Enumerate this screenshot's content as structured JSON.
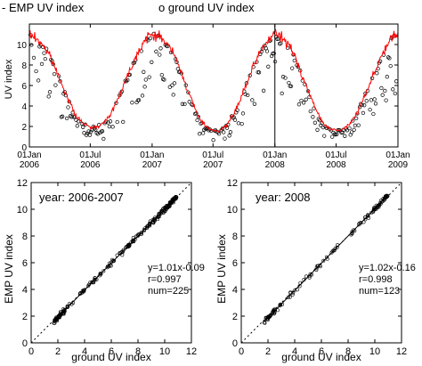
{
  "chart_data": [
    {
      "type": "line",
      "legend": {
        "emp_label": "- EMP UV index",
        "ground_label": "o ground UV index",
        "emp_color": "#ff0000",
        "ground_color": "#000000",
        "placement": "top"
      },
      "ylabel": "UV index",
      "xlabel": "",
      "ylim": [
        0,
        12
      ],
      "yticks": [
        0,
        2,
        4,
        6,
        8,
        10
      ],
      "xlim": [
        "2006-01-01",
        "2009-01-01"
      ],
      "xticks": [
        {
          "date": "2006-01-01",
          "label": [
            "01Jan",
            "2006"
          ]
        },
        {
          "date": "2006-07-01",
          "label": [
            "01Jul",
            "2006"
          ]
        },
        {
          "date": "2007-01-01",
          "label": [
            "01Jan",
            "2007"
          ]
        },
        {
          "date": "2007-07-01",
          "label": [
            "01Jul",
            "2007"
          ]
        },
        {
          "date": "2008-01-01",
          "label": [
            "01Jan",
            "2008"
          ]
        },
        {
          "date": "2008-07-01",
          "label": [
            "01Jul",
            "2008"
          ]
        },
        {
          "date": "2009-01-01",
          "label": [
            "01Jan",
            "2009"
          ]
        }
      ],
      "vline": "2008-01-01",
      "series": [
        {
          "kind": "line",
          "color": "#ff0000",
          "x": [
            "2006-01-01",
            "2006-01-20",
            "2006-02-10",
            "2006-03-01",
            "2006-03-20",
            "2006-04-10",
            "2006-05-01",
            "2006-05-20",
            "2006-06-10",
            "2006-07-01",
            "2006-07-20",
            "2006-08-10",
            "2006-09-01",
            "2006-09-20",
            "2006-10-10",
            "2006-11-01",
            "2006-11-20",
            "2006-12-10",
            "2007-01-01",
            "2007-01-20",
            "2007-02-10",
            "2007-03-01",
            "2007-03-20",
            "2007-04-10",
            "2007-05-01",
            "2007-05-20",
            "2007-06-10",
            "2007-07-01",
            "2007-07-20",
            "2007-08-10",
            "2007-09-01",
            "2007-09-20",
            "2007-10-10",
            "2007-11-01",
            "2007-11-20",
            "2007-12-10",
            "2008-01-01",
            "2008-01-20",
            "2008-02-10",
            "2008-03-01",
            "2008-03-20",
            "2008-04-10",
            "2008-05-01",
            "2008-05-20",
            "2008-06-10",
            "2008-07-01",
            "2008-07-20",
            "2008-08-10",
            "2008-09-01",
            "2008-09-20",
            "2008-10-10",
            "2008-11-01",
            "2008-11-20",
            "2008-12-10",
            "2009-01-01"
          ],
          "y": [
            11.0,
            10.6,
            10.0,
            9.0,
            7.6,
            6.0,
            4.3,
            3.0,
            2.3,
            1.9,
            2.0,
            2.3,
            3.3,
            4.6,
            6.2,
            7.9,
            9.3,
            10.4,
            11.0,
            10.8,
            10.3,
            9.4,
            8.0,
            6.2,
            4.3,
            2.9,
            2.0,
            1.6,
            1.6,
            2.1,
            3.2,
            4.6,
            6.3,
            8.0,
            9.4,
            10.4,
            11.1,
            10.7,
            10.0,
            8.8,
            7.2,
            5.4,
            3.7,
            2.5,
            1.8,
            1.6,
            1.7,
            2.2,
            3.3,
            4.7,
            6.3,
            8.0,
            9.4,
            10.5,
            11.1
          ]
        },
        {
          "kind": "scatter",
          "marker": "open-circle",
          "color": "#000000",
          "note": "daily ground UV measurements scattered around and below the EMP curve"
        }
      ]
    },
    {
      "type": "scatter",
      "title": "year: 2006-2007",
      "xlabel": "ground UV index",
      "ylabel": "EMP UV index",
      "xlim": [
        0,
        12
      ],
      "ylim": [
        0,
        12
      ],
      "xticks": [
        0,
        2,
        4,
        6,
        8,
        10,
        12
      ],
      "yticks": [
        0,
        2,
        4,
        6,
        8,
        10,
        12
      ],
      "diagonal": true,
      "fit": {
        "slope": 1.01,
        "intercept": -0.09
      },
      "stats": [
        "y=1.01x-0.09",
        "r=0.997",
        "num=225"
      ],
      "point_range": [
        1.7,
        10.9
      ],
      "num": 225
    },
    {
      "type": "scatter",
      "title": "year: 2008",
      "xlabel": "ground UV index",
      "ylabel": "EMP UV index",
      "xlim": [
        0,
        12
      ],
      "ylim": [
        0,
        12
      ],
      "xticks": [
        0,
        2,
        4,
        6,
        8,
        10,
        12
      ],
      "yticks": [
        0,
        2,
        4,
        6,
        8,
        10,
        12
      ],
      "diagonal": true,
      "fit": {
        "slope": 1.02,
        "intercept": -0.16
      },
      "stats": [
        "y=1.02x-0.16",
        "r=0.998",
        "num=123"
      ],
      "point_range": [
        1.7,
        11.0
      ],
      "num": 123
    }
  ]
}
